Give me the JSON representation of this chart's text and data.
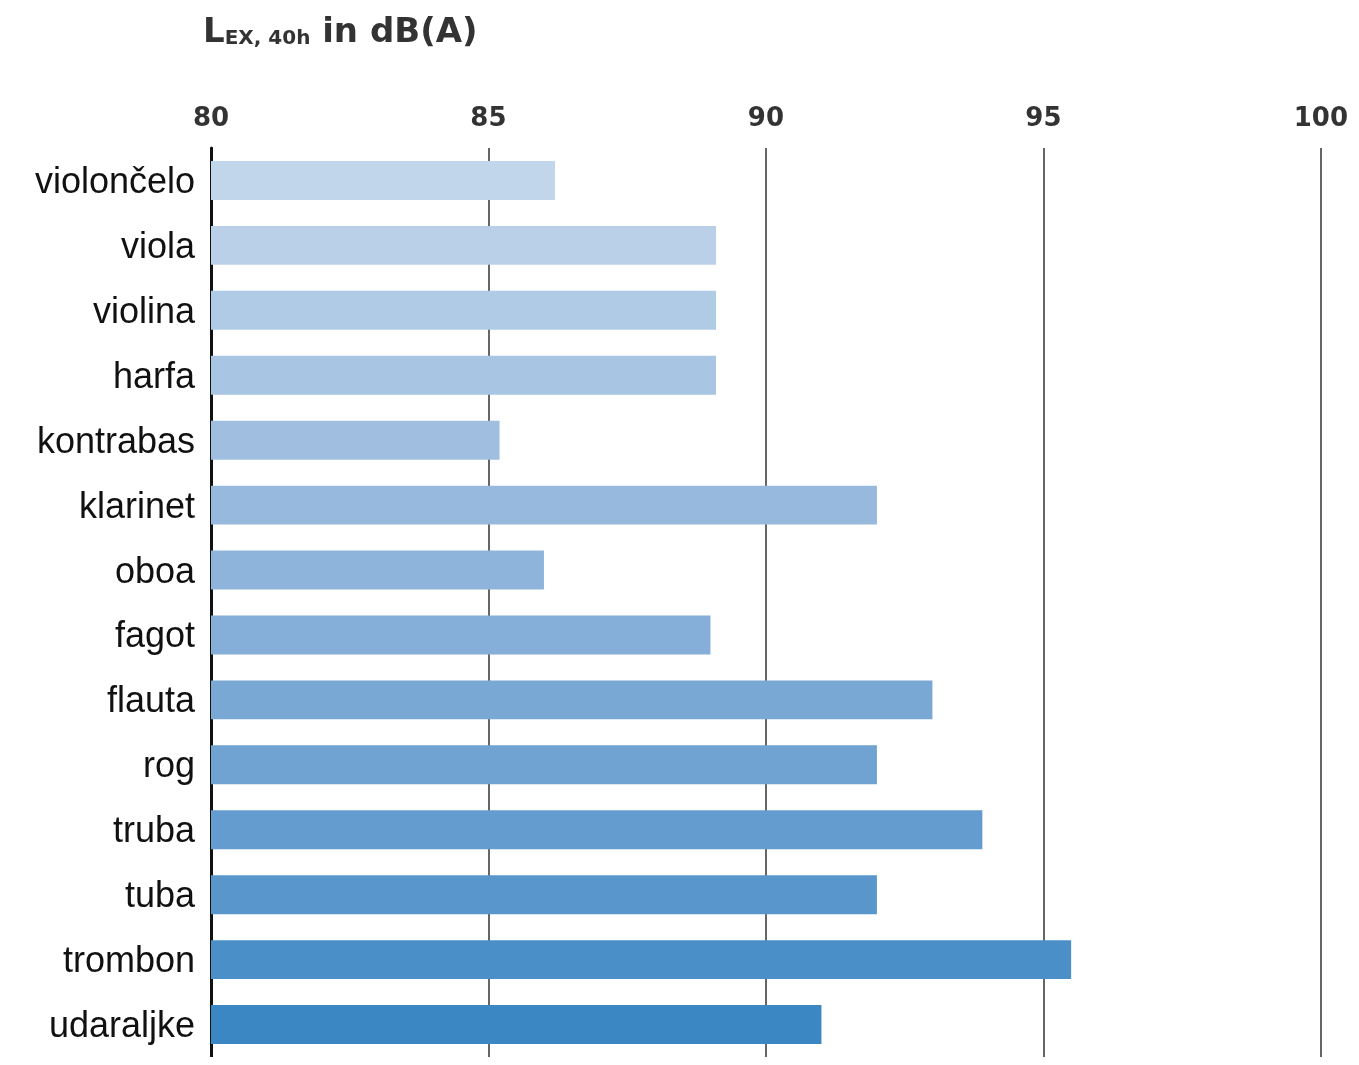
{
  "chart_data": {
    "type": "bar",
    "orientation": "horizontal",
    "xlabel": "L$_{EX, 40h}$ in dB(A)",
    "categories": [
      "violončelo",
      "viola",
      "violina",
      "harfa",
      "kontrabas",
      "klarinet",
      "oboa",
      "fagot",
      "flauta",
      "rog",
      "truba",
      "tuba",
      "trombon",
      "udaraljke"
    ],
    "values": [
      86.2,
      89.1,
      89.1,
      89.1,
      85.2,
      92.0,
      86.0,
      89.0,
      93.0,
      92.0,
      93.9,
      92.0,
      95.5,
      91.0
    ],
    "colors": [
      "#c1d6eb",
      "#b9d0e8",
      "#b0cbe6",
      "#a8c5e3",
      "#a0bfe0",
      "#97b9dd",
      "#8eb4db",
      "#85aed8",
      "#7aa8d5",
      "#70a2d2",
      "#659cd0",
      "#5996cc",
      "#4b8fc9",
      "#3a87c3"
    ],
    "xlim": [
      80,
      100
    ],
    "xticks": [
      80,
      85,
      90,
      95,
      100
    ],
    "grid": "x"
  }
}
